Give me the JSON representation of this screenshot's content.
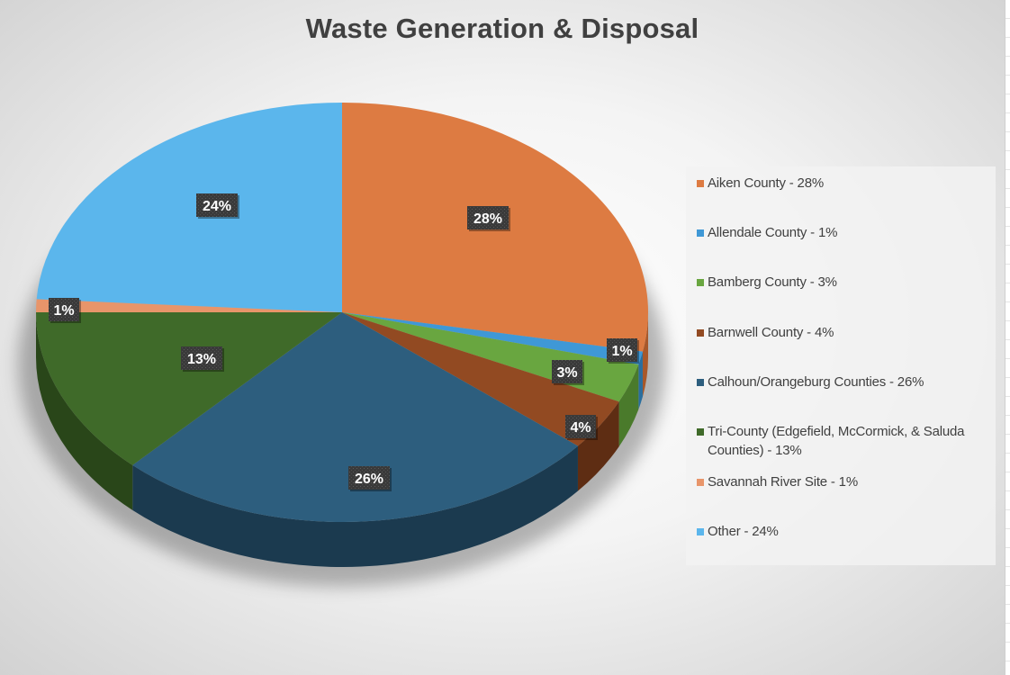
{
  "chart_data": {
    "type": "pie",
    "title": "Waste Generation & Disposal",
    "legend_position": "right",
    "slices": [
      {
        "name": "Aiken County",
        "value": 28,
        "label": "28%",
        "legend": "Aiken County - 28%",
        "color": "#DD7B42",
        "side": "#A8582A"
      },
      {
        "name": "Allendale County",
        "value": 1,
        "label": "1%",
        "legend": "Allendale County - 1%",
        "color": "#3F98D6",
        "side": "#2A6E9E"
      },
      {
        "name": "Bamberg County",
        "value": 3,
        "label": "3%",
        "legend": "Bamberg County - 3%",
        "color": "#69A640",
        "side": "#4A7A2B"
      },
      {
        "name": "Barnwell County",
        "value": 4,
        "label": "4%",
        "legend": "Barnwell County - 4%",
        "color": "#924A22",
        "side": "#5E2D13"
      },
      {
        "name": "Calhoun/Orangeburg Counties",
        "value": 26,
        "label": "26%",
        "legend": "Calhoun/Orangeburg Counties - 26%",
        "color": "#2D5E7E",
        "side": "#1B3A4F"
      },
      {
        "name": "Tri-County (Edgefield, McCormick, & Saluda Counties)",
        "value": 13,
        "label": "13%",
        "legend": "Tri-County (Edgefield, McCormick, & Saluda Counties) - 13%",
        "color": "#3F6A29",
        "side": "#294619"
      },
      {
        "name": "Savannah River Site",
        "value": 1,
        "label": "1%",
        "legend": "Savannah River Site - 1%",
        "color": "#E8956A",
        "side": "#B06D4A"
      },
      {
        "name": "Other",
        "value": 24,
        "label": "24%",
        "legend": "Other - 24%",
        "color": "#5BB6EC",
        "side": "#3B86B4"
      }
    ]
  }
}
